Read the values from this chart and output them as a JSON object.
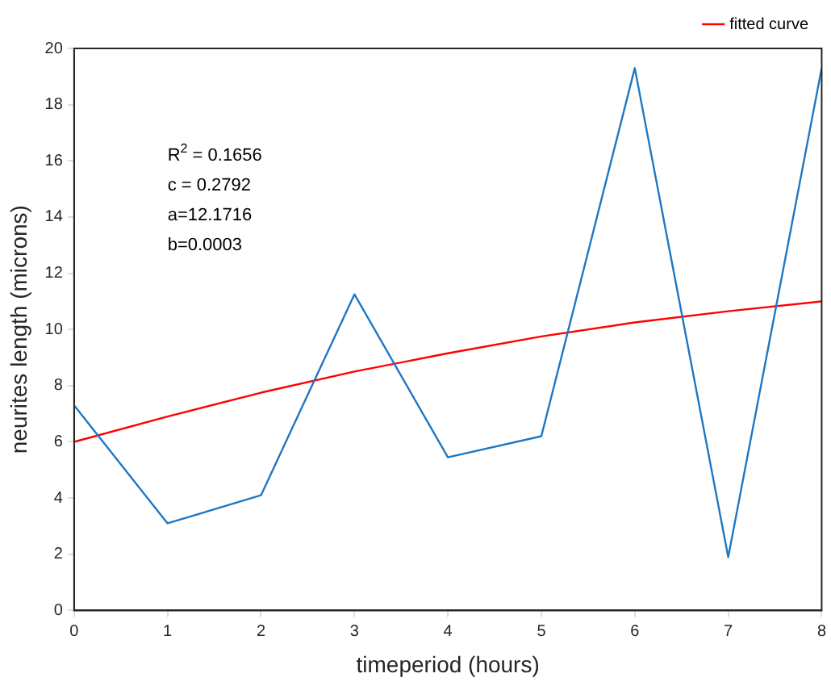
{
  "chart_data": {
    "type": "line",
    "xlabel": "timeperiod (hours)",
    "ylabel": "neurites length (microns)",
    "x": [
      0,
      1,
      2,
      3,
      4,
      5,
      6,
      7,
      8
    ],
    "series": [
      {
        "color": "#1f77c4",
        "values": [
          7.3,
          3.1,
          4.1,
          11.25,
          5.45,
          6.2,
          19.3,
          1.9,
          19.3
        ]
      },
      {
        "name": "fitted curve",
        "color": "#ff0000",
        "values": [
          6.0,
          6.9,
          7.75,
          8.5,
          9.15,
          9.75,
          10.25,
          10.65,
          11.0
        ]
      }
    ],
    "xlim": [
      0,
      8
    ],
    "xticks": [
      0,
      1,
      2,
      3,
      4,
      5,
      6,
      7,
      8
    ],
    "ylim": [
      0,
      20
    ],
    "yticks": [
      0,
      2,
      4,
      6,
      8,
      10,
      12,
      14,
      16,
      18,
      20
    ],
    "annotations": [
      "R$^{2}$ = 0.1656",
      "c = 0.2792",
      "a=12.1716",
      "b=0.0003"
    ],
    "grid": false,
    "legend": "top right",
    "marker": "none",
    "line_style": "solid"
  }
}
